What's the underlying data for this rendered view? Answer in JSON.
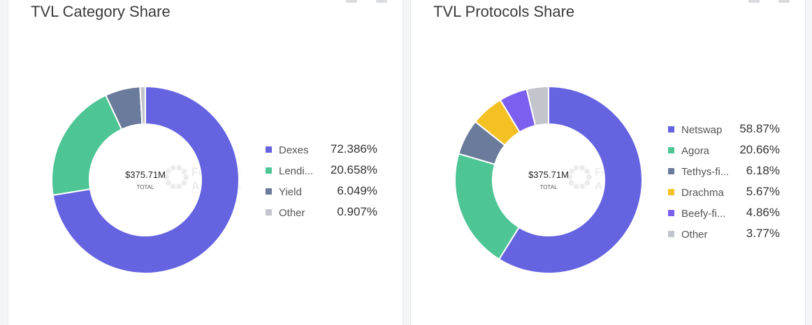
{
  "chart_data": [
    {
      "type": "pie",
      "title": "TVL Category Share",
      "center_value": "$375.71M",
      "center_label": "TOTAL",
      "slices": [
        {
          "label": "Dexes",
          "display_label": "Dexes",
          "value": 72.386,
          "display_value": "72.386%",
          "color": "#6563e0"
        },
        {
          "label": "Lending",
          "display_label": "Lendi...",
          "value": 20.658,
          "display_value": "20.658%",
          "color": "#4ec595"
        },
        {
          "label": "Yield",
          "display_label": "Yield",
          "value": 6.049,
          "display_value": "6.049%",
          "color": "#6b7b9b"
        },
        {
          "label": "Other",
          "display_label": "Other",
          "value": 0.907,
          "display_value": "0.907%",
          "color": "#c2c5cc"
        }
      ],
      "legend_position": "right"
    },
    {
      "type": "pie",
      "title": "TVL Protocols Share",
      "center_value": "$375.71M",
      "center_label": "TOTAL",
      "slices": [
        {
          "label": "Netswap",
          "display_label": "Netswap",
          "value": 58.87,
          "display_value": "58.87%",
          "color": "#6563e0"
        },
        {
          "label": "Agora",
          "display_label": "Agora",
          "value": 20.66,
          "display_value": "20.66%",
          "color": "#4ec595"
        },
        {
          "label": "Tethys-finance",
          "display_label": "Tethys-fi...",
          "value": 6.18,
          "display_value": "6.18%",
          "color": "#6b7b9b"
        },
        {
          "label": "Drachma",
          "display_label": "Drachma",
          "value": 5.67,
          "display_value": "5.67%",
          "color": "#f4c125"
        },
        {
          "label": "Beefy-finance",
          "display_label": "Beefy-fi...",
          "value": 4.86,
          "display_value": "4.86%",
          "color": "#7d5ff0"
        },
        {
          "label": "Other",
          "display_label": "Other",
          "value": 3.77,
          "display_value": "3.77%",
          "color": "#c2c5cc"
        }
      ],
      "legend_position": "right"
    }
  ],
  "watermark": {
    "line1": "Footprint",
    "line2": "Analytics"
  }
}
